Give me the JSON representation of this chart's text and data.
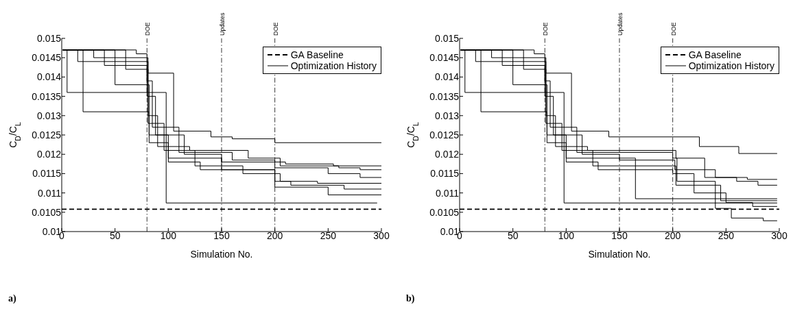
{
  "chart_data": [
    {
      "type": "step",
      "xlabel": "Simulation No.",
      "ylabel": "C$_{D}$/C$_{L}$",
      "xlim": [
        0,
        300
      ],
      "ylim": [
        0.01,
        0.015
      ],
      "xticks": [
        0,
        50,
        100,
        150,
        200,
        250,
        300
      ],
      "yticks": [
        0.01,
        0.0105,
        0.011,
        0.0115,
        0.012,
        0.0125,
        0.013,
        0.0135,
        0.014,
        0.0145,
        0.015
      ],
      "legend": "top right",
      "annotations": [
        "a)"
      ],
      "ref_lines": [
        {
          "axis": "x",
          "value": 80,
          "label": "DOE",
          "line_style": "dashed"
        },
        {
          "axis": "x",
          "value": 150,
          "label": "Updates",
          "line_style": "dashed"
        },
        {
          "axis": "x",
          "value": 200,
          "label": "DOE",
          "line_style": "dashed"
        }
      ],
      "series": [
        {
          "name": "GA Baseline",
          "type": "line",
          "line_style": "dashed",
          "color": "#000000",
          "x": [
            0,
            300
          ],
          "values": [
            0.01058,
            0.01058
          ]
        },
        {
          "name": "Optimization History",
          "color": "#000000",
          "x": [
            1,
            5,
            98,
            296
          ],
          "values": [
            0.0147,
            0.0136,
            0.01074,
            0.01074
          ]
        },
        {
          "type": "step",
          "color": "#000000",
          "x": [
            1,
            20,
            82,
            100,
            150,
            200,
            250,
            300
          ],
          "values": [
            0.0147,
            0.0131,
            0.0125,
            0.0119,
            0.0116,
            0.01115,
            0.01095,
            0.01095
          ]
        },
        {
          "type": "step",
          "color": "#000000",
          "x": [
            1,
            40,
            80,
            85,
            110,
            160,
            200,
            250,
            280,
            300
          ],
          "values": [
            0.0147,
            0.0143,
            0.0139,
            0.0127,
            0.01205,
            0.01185,
            0.01165,
            0.0115,
            0.0114,
            0.0114
          ]
        },
        {
          "type": "step",
          "color": "#000000",
          "x": [
            1,
            60,
            81,
            105,
            140,
            160,
            200,
            300
          ],
          "values": [
            0.0147,
            0.0142,
            0.0141,
            0.0126,
            0.01245,
            0.0124,
            0.0123,
            0.0123
          ]
        },
        {
          "type": "step",
          "color": "#000000",
          "x": [
            1,
            30,
            81,
            90,
            120,
            175,
            205,
            260,
            280,
            300
          ],
          "values": [
            0.0147,
            0.0145,
            0.013,
            0.0122,
            0.0121,
            0.0119,
            0.0117,
            0.01165,
            0.0116,
            0.0116
          ]
        },
        {
          "type": "step",
          "color": "#000000",
          "x": [
            1,
            50,
            82,
            100,
            130,
            200,
            215,
            265,
            300
          ],
          "values": [
            0.0147,
            0.0138,
            0.0123,
            0.0118,
            0.0116,
            0.0113,
            0.0112,
            0.0111,
            0.0111
          ]
        },
        {
          "type": "step",
          "color": "#000000",
          "x": [
            1,
            70,
            80,
            88,
            115,
            150,
            210,
            255,
            300
          ],
          "values": [
            0.0147,
            0.0146,
            0.0135,
            0.0125,
            0.012,
            0.0118,
            0.01175,
            0.0117,
            0.0117
          ]
        },
        {
          "type": "step",
          "color": "#000000",
          "x": [
            1,
            15,
            81,
            96,
            125,
            170,
            205,
            240,
            300
          ],
          "values": [
            0.0147,
            0.0144,
            0.0128,
            0.0121,
            0.0117,
            0.0115,
            0.0113,
            0.01125,
            0.01125
          ]
        }
      ]
    },
    {
      "type": "step",
      "xlabel": "Simulation No.",
      "ylabel": "C$_{D}$/C$_{L}$",
      "xlim": [
        0,
        300
      ],
      "ylim": [
        0.01,
        0.015
      ],
      "xticks": [
        0,
        50,
        100,
        150,
        200,
        250,
        300
      ],
      "yticks": [
        0.01,
        0.0105,
        0.011,
        0.0115,
        0.012,
        0.0125,
        0.013,
        0.0135,
        0.014,
        0.0145,
        0.015
      ],
      "legend": "top right",
      "annotations": [
        "b)"
      ],
      "ref_lines": [
        {
          "axis": "x",
          "value": 80,
          "label": "DOE",
          "line_style": "dashed"
        },
        {
          "axis": "x",
          "value": 150,
          "label": "Updates",
          "line_style": "dashed"
        },
        {
          "axis": "x",
          "value": 200,
          "label": "DOE",
          "line_style": "dashed"
        }
      ],
      "series": [
        {
          "name": "GA Baseline",
          "type": "line",
          "line_style": "dashed",
          "color": "#000000",
          "x": [
            0,
            300
          ],
          "values": [
            0.01058,
            0.01058
          ]
        },
        {
          "name": "Optimization History",
          "color": "#000000",
          "x": [
            1,
            5,
            98,
            298
          ],
          "values": [
            0.0147,
            0.0136,
            0.01074,
            0.01074
          ]
        },
        {
          "type": "step",
          "color": "#000000",
          "x": [
            1,
            20,
            82,
            100,
            165,
            298
          ],
          "values": [
            0.0147,
            0.0131,
            0.0125,
            0.0119,
            0.01085,
            0.01085
          ]
        },
        {
          "type": "step",
          "color": "#000000",
          "x": [
            1,
            40,
            80,
            85,
            110,
            200,
            204,
            240,
            255,
            285,
            298
          ],
          "values": [
            0.0147,
            0.0143,
            0.0139,
            0.0127,
            0.01205,
            0.0119,
            0.0113,
            0.0106,
            0.01035,
            0.01028,
            0.01028
          ]
        },
        {
          "type": "step",
          "color": "#000000",
          "x": [
            1,
            60,
            81,
            105,
            140,
            225,
            262,
            298
          ],
          "values": [
            0.0147,
            0.0142,
            0.0141,
            0.0126,
            0.01245,
            0.0122,
            0.01202,
            0.01202
          ]
        },
        {
          "type": "step",
          "color": "#000000",
          "x": [
            1,
            30,
            81,
            90,
            120,
            203,
            230,
            260,
            280,
            298
          ],
          "values": [
            0.0147,
            0.0145,
            0.013,
            0.0122,
            0.0121,
            0.0119,
            0.0114,
            0.0113,
            0.0112,
            0.0112
          ]
        },
        {
          "type": "step",
          "color": "#000000",
          "x": [
            1,
            50,
            82,
            100,
            130,
            200,
            220,
            250,
            275,
            298
          ],
          "values": [
            0.0147,
            0.0138,
            0.0123,
            0.0118,
            0.0116,
            0.0115,
            0.011,
            0.01075,
            0.01065,
            0.01065
          ]
        },
        {
          "type": "step",
          "color": "#000000",
          "x": [
            1,
            70,
            80,
            88,
            115,
            150,
            202,
            240,
            270,
            298
          ],
          "values": [
            0.0147,
            0.0146,
            0.0135,
            0.0125,
            0.012,
            0.01185,
            0.0116,
            0.0114,
            0.01135,
            0.01135
          ]
        },
        {
          "type": "step",
          "color": "#000000",
          "x": [
            1,
            15,
            81,
            96,
            125,
            203,
            245,
            298
          ],
          "values": [
            0.0147,
            0.0144,
            0.0128,
            0.0121,
            0.0117,
            0.0112,
            0.0108,
            0.0108
          ]
        }
      ]
    }
  ]
}
